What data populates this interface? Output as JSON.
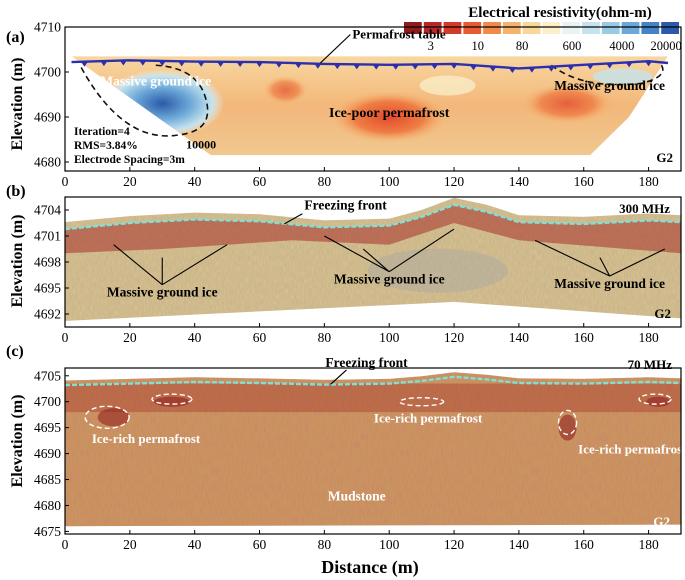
{
  "figure": {
    "colorbar": {
      "title": "Electrical resistivity(ohm-m)",
      "ticks": [
        "3",
        "10",
        "80",
        "600",
        "4000",
        "20000"
      ],
      "colors": [
        "#8e1c1c",
        "#b52828",
        "#d23a2a",
        "#e65b34",
        "#f08a4a",
        "#f5b36b",
        "#f8d79a",
        "#fbeec8",
        "#e9f3f3",
        "#c4e3ee",
        "#9acbe5",
        "#6da8d8",
        "#4582c6",
        "#2a5aa8"
      ]
    },
    "xlabel": "Distance (m)"
  },
  "chart_data": [
    {
      "type": "heatmap",
      "panel": "(a)",
      "ylabel": "Elevation (m)",
      "xlim": [
        0,
        190
      ],
      "ylim": [
        4678,
        4710
      ],
      "xticks": [
        0,
        20,
        40,
        60,
        80,
        100,
        120,
        140,
        160,
        180
      ],
      "yticks": [
        4680,
        4690,
        4700,
        4710
      ],
      "site": "G2",
      "stats": [
        "Iteration=4",
        "RMS=3.84%",
        "Electrode Spacing=3m"
      ],
      "annotations": [
        {
          "text": "Permafrost table",
          "x": 80,
          "y": 4707
        },
        {
          "text": "Massive ground ice",
          "x": 28,
          "y": 4697
        },
        {
          "text": "Massive ground ice",
          "x": 168,
          "y": 4696
        },
        {
          "text": "Ice-poor permafrost",
          "x": 100,
          "y": 4690
        },
        {
          "text": "10000",
          "x": 42,
          "y": 4683
        }
      ],
      "permafrost_table": {
        "x": [
          2,
          20,
          40,
          60,
          80,
          100,
          120,
          140,
          160,
          180,
          186
        ],
        "y": [
          4702.2,
          4702.6,
          4702.3,
          4702.2,
          4701.8,
          4701.6,
          4701.8,
          4700.8,
          4701.6,
          4702.4,
          4702.0
        ]
      }
    },
    {
      "type": "heatmap",
      "panel": "(b)",
      "ylabel": "Elevation (m)",
      "xlim": [
        0,
        190
      ],
      "ylim": [
        4690.5,
        4705.5
      ],
      "xticks": [
        0,
        20,
        40,
        60,
        80,
        100,
        120,
        140,
        160,
        180
      ],
      "yticks": [
        4692,
        4695,
        4698,
        4701,
        4704
      ],
      "site": "G2",
      "frequency": "300 MHz",
      "annotations": [
        {
          "text": "Freezing front",
          "x": 80,
          "y": 4703.8
        },
        {
          "text": "Massive ground ice",
          "x": 30,
          "y": 4694
        },
        {
          "text": "Massive ground ice",
          "x": 100,
          "y": 4695.5
        },
        {
          "text": "Massive ground ice",
          "x": 168,
          "y": 4695
        }
      ],
      "freezing_front": {
        "x": [
          0,
          20,
          40,
          60,
          80,
          100,
          110,
          120,
          130,
          140,
          160,
          180,
          190
        ],
        "y": [
          4701.8,
          4702.5,
          4702.9,
          4702.7,
          4702.0,
          4702.2,
          4703.2,
          4704.6,
          4703.8,
          4702.6,
          4702.4,
          4702.8,
          4702.6
        ]
      }
    },
    {
      "type": "heatmap",
      "panel": "(c)",
      "ylabel": "Elevation (m)",
      "xlim": [
        0,
        190
      ],
      "ylim": [
        4674.5,
        4706.5
      ],
      "xticks": [
        0,
        20,
        40,
        60,
        80,
        100,
        120,
        140,
        160,
        180
      ],
      "yticks": [
        4675,
        4680,
        4685,
        4690,
        4695,
        4700,
        4705
      ],
      "site": "G2",
      "frequency": "70 MHz",
      "annotations": [
        {
          "text": "Freezing front",
          "x": 93,
          "y": 4704
        },
        {
          "text": "Ice-rich permafrost",
          "x": 25,
          "y": 4692
        },
        {
          "text": "Ice-rich permafrost",
          "x": 112,
          "y": 4696
        },
        {
          "text": "Ice-rich permafrost",
          "x": 175,
          "y": 4690
        },
        {
          "text": "Mudstone",
          "x": 90,
          "y": 4681
        }
      ],
      "freezing_front": {
        "x": [
          0,
          20,
          40,
          60,
          80,
          100,
          110,
          120,
          130,
          140,
          160,
          180,
          190
        ],
        "y": [
          4703.2,
          4703.5,
          4703.8,
          4703.6,
          4703.3,
          4703.5,
          4704.0,
          4704.8,
          4704.3,
          4703.6,
          4703.5,
          4703.8,
          4703.6
        ]
      }
    }
  ]
}
